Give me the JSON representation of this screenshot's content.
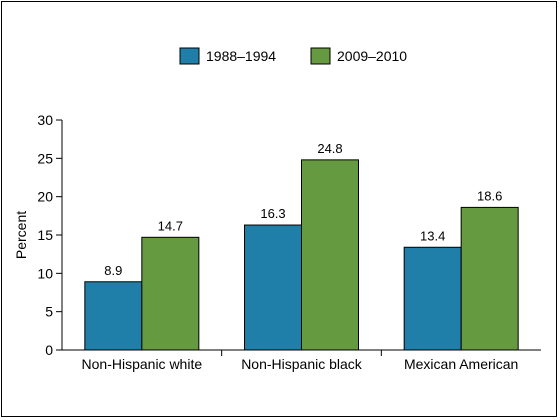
{
  "chart_data": {
    "type": "bar",
    "categories": [
      "Non-Hispanic white",
      "Non-Hispanic black",
      "Mexican American"
    ],
    "series": [
      {
        "name": "1988–1994",
        "values": [
          8.9,
          16.3,
          13.4
        ],
        "color": "#1f7fa8"
      },
      {
        "name": "2009–2010",
        "values": [
          14.7,
          24.8,
          18.6
        ],
        "color": "#669a41"
      }
    ],
    "data_labels": [
      [
        "8.9",
        "16.3",
        "13.4"
      ],
      [
        "14.7",
        "24.8",
        "18.6"
      ]
    ],
    "ylabel": "Percent",
    "ylim": [
      0,
      30
    ],
    "yticks": [
      "0",
      "5",
      "10",
      "15",
      "20",
      "25",
      "30"
    ],
    "grid": false,
    "legend_position": "top-center"
  }
}
